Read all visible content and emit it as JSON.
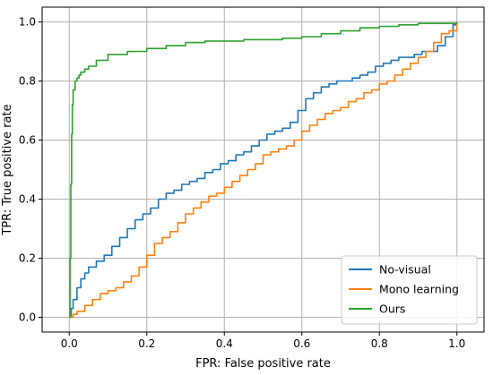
{
  "chart_data": {
    "type": "line",
    "title": "",
    "xlabel": "FPR: False positive rate",
    "ylabel": "TPR: True positive rate",
    "xlim": [
      -0.07,
      1.07
    ],
    "ylim": [
      -0.05,
      1.05
    ],
    "xticks": [
      0.0,
      0.2,
      0.4,
      0.6,
      0.8,
      1.0
    ],
    "xtick_labels": [
      "0.0",
      "0.2",
      "0.4",
      "0.6",
      "0.8",
      "1.0"
    ],
    "yticks": [
      0.0,
      0.2,
      0.4,
      0.6,
      0.8,
      1.0
    ],
    "ytick_labels": [
      "0.0",
      "0.2",
      "0.4",
      "0.6",
      "0.8",
      "1.0"
    ],
    "grid": true,
    "legend_position": "lower-right",
    "series": [
      {
        "name": "No-visual",
        "color": "#1f77b4",
        "x": [
          0.0,
          0.005,
          0.01,
          0.02,
          0.03,
          0.04,
          0.05,
          0.07,
          0.09,
          0.11,
          0.13,
          0.15,
          0.17,
          0.19,
          0.21,
          0.23,
          0.25,
          0.27,
          0.29,
          0.31,
          0.33,
          0.35,
          0.37,
          0.39,
          0.41,
          0.43,
          0.45,
          0.47,
          0.49,
          0.51,
          0.53,
          0.55,
          0.57,
          0.59,
          0.61,
          0.63,
          0.65,
          0.67,
          0.69,
          0.71,
          0.73,
          0.75,
          0.77,
          0.79,
          0.81,
          0.83,
          0.85,
          0.87,
          0.89,
          0.91,
          0.93,
          0.95,
          0.97,
          0.99,
          1.0
        ],
        "y": [
          0.0,
          0.03,
          0.06,
          0.1,
          0.13,
          0.15,
          0.17,
          0.19,
          0.21,
          0.24,
          0.27,
          0.3,
          0.33,
          0.35,
          0.37,
          0.4,
          0.42,
          0.43,
          0.45,
          0.46,
          0.47,
          0.49,
          0.5,
          0.52,
          0.53,
          0.55,
          0.56,
          0.58,
          0.6,
          0.62,
          0.63,
          0.64,
          0.66,
          0.7,
          0.74,
          0.76,
          0.78,
          0.79,
          0.8,
          0.8,
          0.81,
          0.82,
          0.83,
          0.85,
          0.86,
          0.87,
          0.88,
          0.88,
          0.89,
          0.9,
          0.9,
          0.92,
          0.95,
          0.99,
          1.0
        ]
      },
      {
        "name": "Mono learning",
        "color": "#ff7f0e",
        "x": [
          0.0,
          0.01,
          0.02,
          0.04,
          0.06,
          0.08,
          0.1,
          0.12,
          0.14,
          0.16,
          0.18,
          0.2,
          0.22,
          0.24,
          0.26,
          0.28,
          0.3,
          0.32,
          0.34,
          0.36,
          0.38,
          0.4,
          0.42,
          0.44,
          0.46,
          0.48,
          0.5,
          0.52,
          0.54,
          0.56,
          0.58,
          0.6,
          0.62,
          0.64,
          0.66,
          0.68,
          0.7,
          0.72,
          0.74,
          0.76,
          0.78,
          0.8,
          0.82,
          0.84,
          0.86,
          0.88,
          0.9,
          0.92,
          0.94,
          0.96,
          0.98,
          1.0
        ],
        "y": [
          0.0,
          0.01,
          0.02,
          0.04,
          0.06,
          0.08,
          0.09,
          0.1,
          0.12,
          0.14,
          0.17,
          0.21,
          0.25,
          0.27,
          0.29,
          0.32,
          0.35,
          0.37,
          0.39,
          0.41,
          0.42,
          0.44,
          0.46,
          0.48,
          0.5,
          0.52,
          0.55,
          0.56,
          0.57,
          0.58,
          0.6,
          0.63,
          0.65,
          0.67,
          0.69,
          0.7,
          0.71,
          0.73,
          0.74,
          0.76,
          0.77,
          0.79,
          0.8,
          0.82,
          0.84,
          0.86,
          0.88,
          0.9,
          0.93,
          0.96,
          0.97,
          1.0
        ]
      },
      {
        "name": "Ours",
        "color": "#2ca02c",
        "x": [
          0.0,
          0.002,
          0.004,
          0.006,
          0.008,
          0.01,
          0.015,
          0.02,
          0.025,
          0.03,
          0.04,
          0.05,
          0.07,
          0.1,
          0.15,
          0.2,
          0.25,
          0.3,
          0.35,
          0.4,
          0.45,
          0.5,
          0.55,
          0.6,
          0.65,
          0.7,
          0.75,
          0.8,
          0.85,
          0.9,
          0.95,
          1.0
        ],
        "y": [
          0.0,
          0.2,
          0.45,
          0.62,
          0.72,
          0.77,
          0.8,
          0.81,
          0.82,
          0.83,
          0.84,
          0.85,
          0.87,
          0.89,
          0.9,
          0.91,
          0.92,
          0.93,
          0.935,
          0.935,
          0.94,
          0.94,
          0.945,
          0.95,
          0.96,
          0.97,
          0.98,
          0.985,
          0.99,
          0.995,
          0.995,
          1.0
        ]
      }
    ]
  }
}
